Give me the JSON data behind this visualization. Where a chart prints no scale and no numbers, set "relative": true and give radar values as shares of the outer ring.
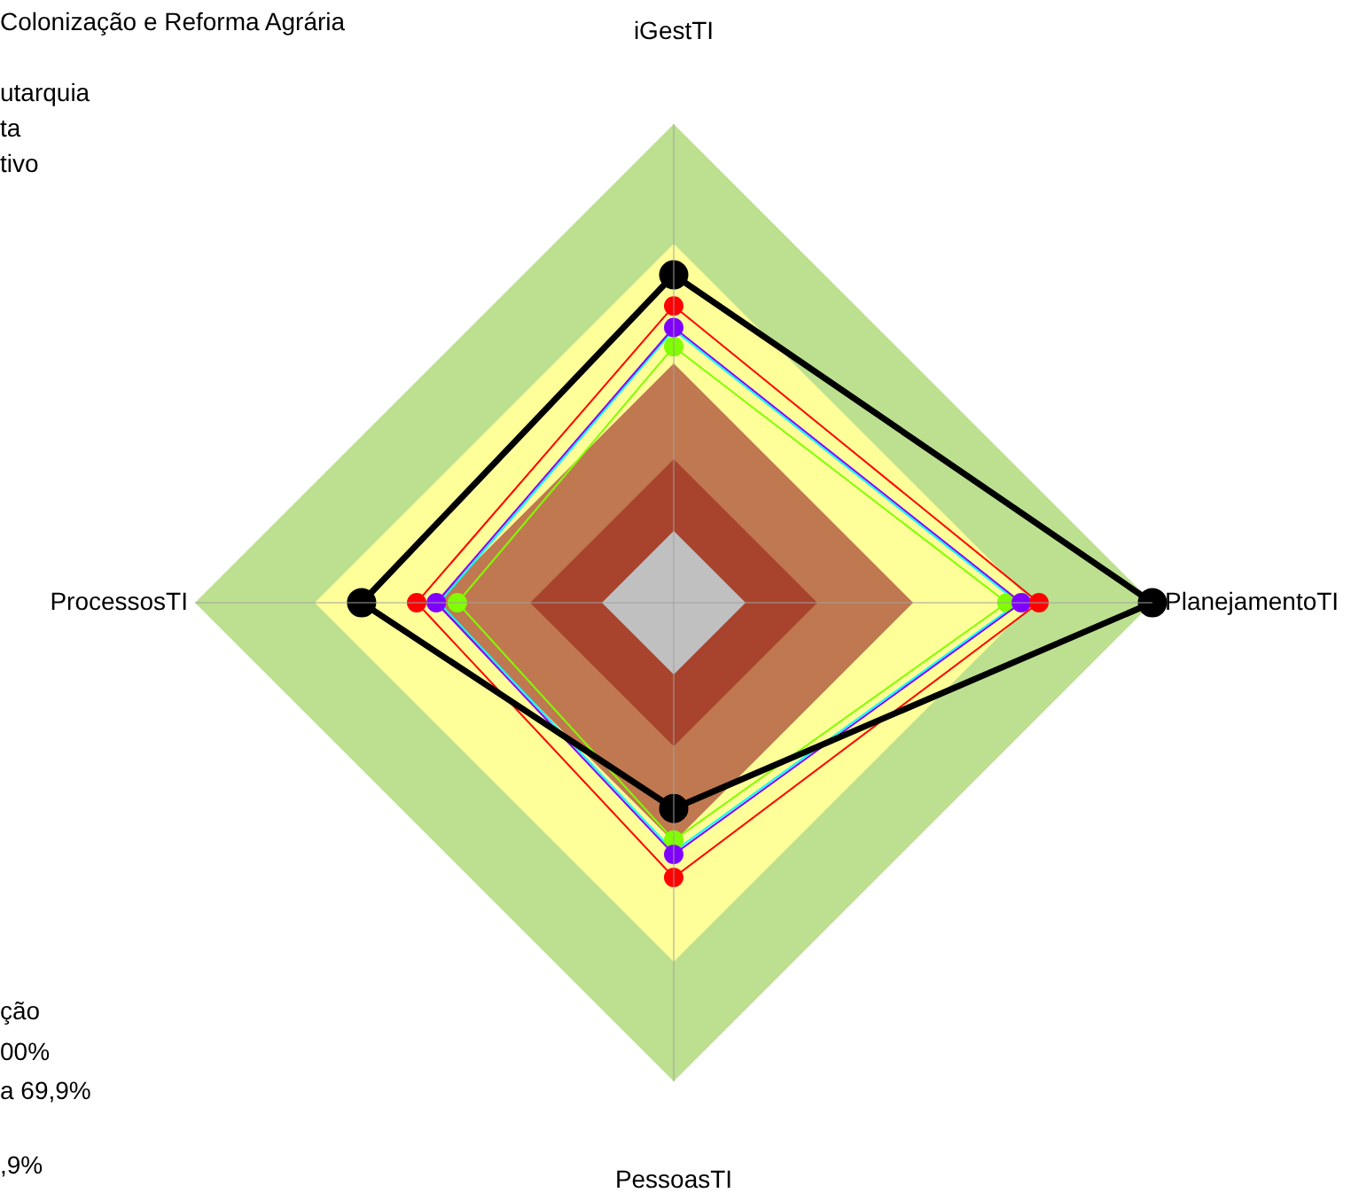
{
  "chart_data": {
    "type": "radar",
    "relative": true,
    "marker": "circle",
    "categories": [
      "iGestTI",
      "PlanejamentoTI",
      "PessoasTI",
      "ProcessosTI"
    ],
    "series": [
      {
        "color": "#000000",
        "line_style": "solid",
        "values": [
          0.685,
          1.0,
          0.43,
          0.652
        ]
      },
      {
        "color": "#ff0000",
        "values": [
          0.62,
          0.763,
          0.574,
          0.537
        ]
      },
      {
        "color": "#8000ff",
        "values": [
          0.575,
          0.726,
          0.526,
          0.496
        ]
      },
      {
        "color": "#80ff00",
        "values": [
          0.535,
          0.696,
          0.496,
          0.452
        ]
      },
      {
        "color": "#00ffff",
        "marker": "none",
        "values": [
          0.57,
          0.72,
          0.52,
          0.49
        ]
      }
    ],
    "annotations": [
      "Colonização e Reforma Agrária",
      "utarquia",
      "ta",
      "tivo",
      "ção",
      "00%",
      "a 69,9%",
      ",9%"
    ]
  }
}
